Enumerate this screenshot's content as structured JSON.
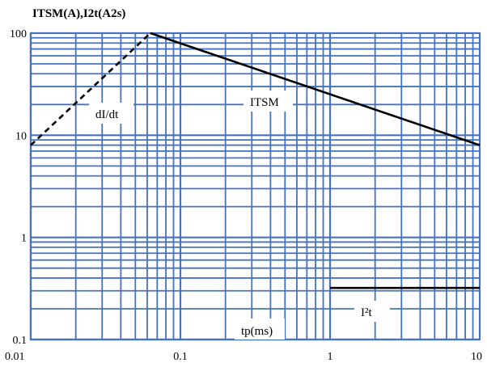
{
  "chart_data": {
    "type": "line",
    "ylabel": "ITSM(A),I2t(A2s)",
    "xlabel": "tp(ms)",
    "x_scale": "log",
    "y_scale": "log",
    "xlim": [
      0.01,
      10
    ],
    "ylim": [
      0.1,
      100
    ],
    "grid": true,
    "grid_color": "#4472c4",
    "x_ticks": [
      "0.01",
      "0.1",
      "1",
      "10"
    ],
    "y_ticks": [
      "0.1",
      "1",
      "10",
      "100"
    ],
    "series": [
      {
        "name": "dI/dt",
        "style": "dashed",
        "color": "#000000",
        "x": [
          0.01,
          0.063
        ],
        "y": [
          8,
          100
        ]
      },
      {
        "name": "ITSM",
        "style": "solid",
        "color": "#000000",
        "x": [
          0.063,
          10
        ],
        "y": [
          100,
          8
        ]
      },
      {
        "name": "I²t",
        "style": "solid",
        "color": "#000000",
        "x": [
          1,
          10
        ],
        "y": [
          0.32,
          0.32
        ]
      }
    ]
  }
}
